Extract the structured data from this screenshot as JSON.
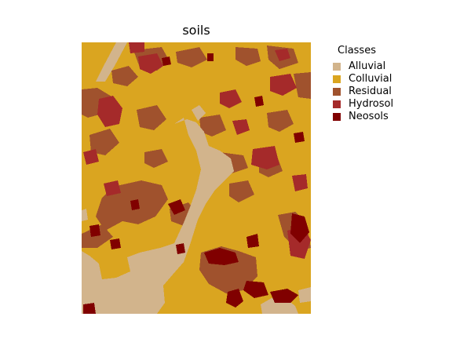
{
  "title": "soils",
  "legend": {
    "title": "Classes",
    "items": [
      {
        "label": "Alluvial",
        "color": "#d2b48c"
      },
      {
        "label": "Colluvial",
        "color": "#daa520"
      },
      {
        "label": "Residual",
        "color": "#a0522d"
      },
      {
        "label": "Hydrosol",
        "color": "#a52a2a"
      },
      {
        "label": "Neosols",
        "color": "#800000"
      }
    ]
  }
}
